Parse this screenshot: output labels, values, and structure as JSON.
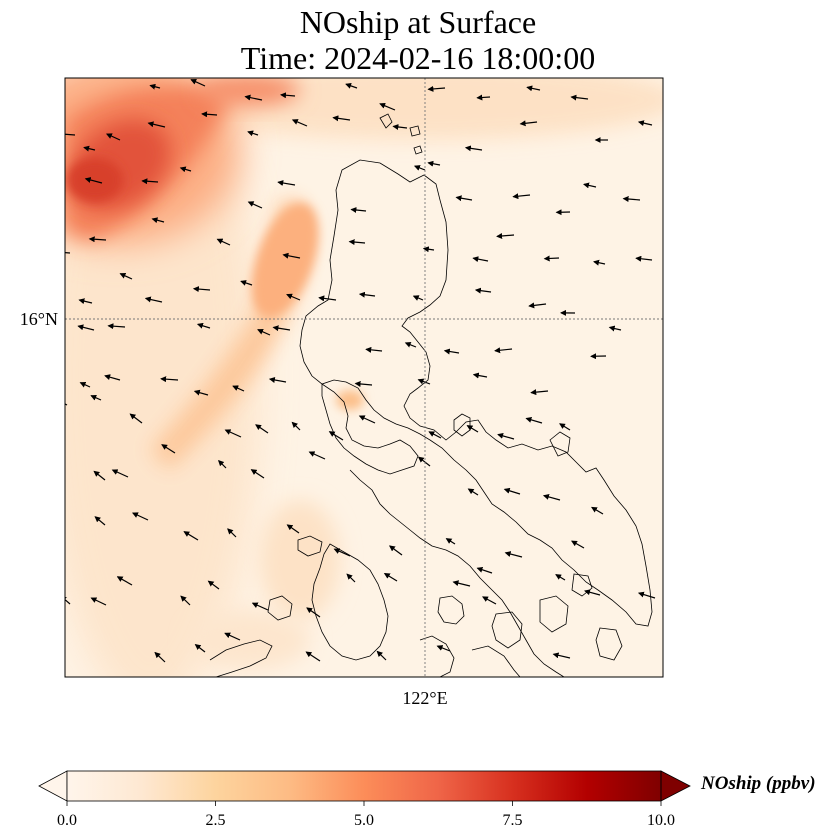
{
  "title": {
    "line1": "NOship at Surface",
    "line2": "Time: 2024-02-16 18:00:00"
  },
  "map": {
    "lat_label": "16°N",
    "lon_label": "122°E",
    "gridline_color": "#777777",
    "coastline_color": "#000000"
  },
  "colorbar": {
    "label": "NOship (ppbv)",
    "ticks": [
      "0.0",
      "2.5",
      "5.0",
      "7.5",
      "10.0"
    ],
    "range": [
      0,
      10
    ],
    "colors": [
      "#fff5eb",
      "#fee6ce",
      "#fdd0a2",
      "#fdae6b",
      "#fd8d3c",
      "#f16913",
      "#d94801",
      "#a63603",
      "#7f2704"
    ],
    "extend": "both"
  },
  "layers": {
    "field": "NOship concentration",
    "vectors": "wind arrows",
    "coastlines": "Luzon, Philippines"
  }
}
